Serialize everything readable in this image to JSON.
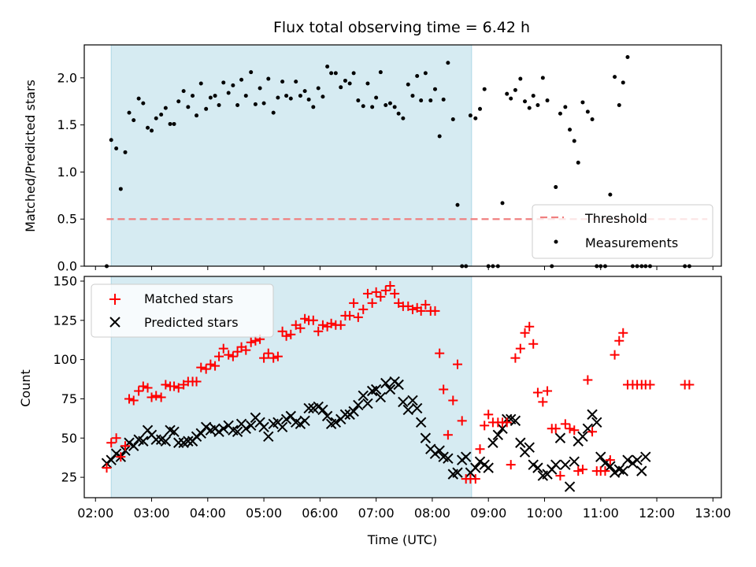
{
  "chart_data": [
    {
      "type": "scatter",
      "panel": "top",
      "title": "Flux total observing time = 6.42 h",
      "xlabel": "",
      "ylabel": "Matched/Predicted stars",
      "xlim_hours": [
        1.8,
        13.15
      ],
      "ylim": [
        0,
        2.35
      ],
      "yticks": [
        0.0,
        0.5,
        1.0,
        1.5,
        2.0
      ],
      "ytick_labels": [
        "0.0",
        "0.5",
        "1.0",
        "1.5",
        "2.0"
      ],
      "shaded_interval_hours": [
        2.28,
        8.7
      ],
      "shade_color": "#add8e6",
      "threshold": {
        "name": "Threshold",
        "value": 0.5,
        "x_range_hours": [
          2.2,
          12.9
        ],
        "color": "#f08080"
      },
      "legend": [
        "Threshold",
        "Measurements"
      ],
      "legend_position": "lower-right",
      "series": [
        {
          "name": "Measurements",
          "color": "#000000",
          "x_hours": [
            2.2,
            2.28,
            2.37,
            2.45,
            2.53,
            2.6,
            2.68,
            2.77,
            2.85,
            2.93,
            3.0,
            3.08,
            3.17,
            3.25,
            3.33,
            3.4,
            3.48,
            3.57,
            3.65,
            3.73,
            3.8,
            3.88,
            3.97,
            4.05,
            4.13,
            4.2,
            4.28,
            4.37,
            4.45,
            4.53,
            4.6,
            4.68,
            4.77,
            4.85,
            4.93,
            5.0,
            5.08,
            5.17,
            5.25,
            5.33,
            5.4,
            5.48,
            5.57,
            5.65,
            5.73,
            5.8,
            5.88,
            5.97,
            6.05,
            6.13,
            6.2,
            6.28,
            6.37,
            6.45,
            6.53,
            6.6,
            6.68,
            6.77,
            6.85,
            6.93,
            7.0,
            7.08,
            7.17,
            7.25,
            7.33,
            7.4,
            7.48,
            7.57,
            7.65,
            7.73,
            7.8,
            7.88,
            7.97,
            8.05,
            8.13,
            8.2,
            8.28,
            8.37,
            8.45,
            8.53,
            8.6,
            8.68,
            8.77,
            8.85,
            8.93,
            9.0,
            9.08,
            9.17,
            9.25,
            9.33,
            9.4,
            9.48,
            9.57,
            9.65,
            9.73,
            9.8,
            9.88,
            9.97,
            10.05,
            10.13,
            10.2,
            10.28,
            10.37,
            10.45,
            10.53,
            10.6,
            10.68,
            10.77,
            10.85,
            10.93,
            11.0,
            11.08,
            11.17,
            11.25,
            11.33,
            11.4,
            11.48,
            11.57,
            11.65,
            11.73,
            11.8,
            11.88,
            12.5,
            12.58
          ],
          "y": [
            0.0,
            1.34,
            1.25,
            0.82,
            1.21,
            1.63,
            1.55,
            1.78,
            1.73,
            1.47,
            1.44,
            1.57,
            1.61,
            1.68,
            1.51,
            1.51,
            1.75,
            1.86,
            1.69,
            1.81,
            1.6,
            1.94,
            1.67,
            1.79,
            1.81,
            1.71,
            1.95,
            1.84,
            1.92,
            1.71,
            1.98,
            1.81,
            2.06,
            1.72,
            1.89,
            1.73,
            1.99,
            1.63,
            1.79,
            1.96,
            1.81,
            1.78,
            1.96,
            1.81,
            1.86,
            1.77,
            1.69,
            1.89,
            1.8,
            2.12,
            2.05,
            2.05,
            1.9,
            1.97,
            1.94,
            2.05,
            1.76,
            1.7,
            1.94,
            1.69,
            1.79,
            2.06,
            1.71,
            1.73,
            1.69,
            1.62,
            1.57,
            1.93,
            1.81,
            2.02,
            1.76,
            2.05,
            1.76,
            1.88,
            1.38,
            1.77,
            2.16,
            1.56,
            0.65,
            0.0,
            0.0,
            1.6,
            1.57,
            1.67,
            1.88,
            0.0,
            0.0,
            0.0,
            0.67,
            1.83,
            1.78,
            1.87,
            1.99,
            1.75,
            1.68,
            1.81,
            1.71,
            2.0,
            1.76,
            0.0,
            0.84,
            1.62,
            1.69,
            1.45,
            1.33,
            1.1,
            1.74,
            1.64,
            1.56,
            0.0,
            0.0,
            0.0,
            0.76,
            2.01,
            1.71,
            1.95,
            2.22,
            0.0,
            0.0,
            0.0,
            0.0,
            0.0,
            0.0,
            0.0
          ]
        }
      ]
    },
    {
      "type": "scatter",
      "panel": "bottom",
      "title": "",
      "xlabel": "Time (UTC)",
      "ylabel": "Count",
      "xlim_hours": [
        1.8,
        13.15
      ],
      "ylim": [
        12,
        153
      ],
      "yticks": [
        25,
        50,
        75,
        100,
        125,
        150
      ],
      "ytick_labels": [
        "25",
        "50",
        "75",
        "100",
        "125",
        "150"
      ],
      "xticks_hours": [
        2,
        3,
        4,
        5,
        6,
        7,
        8,
        9,
        10,
        11,
        12,
        13
      ],
      "xtick_labels": [
        "02:00",
        "03:00",
        "04:00",
        "05:00",
        "06:00",
        "07:00",
        "08:00",
        "09:00",
        "10:00",
        "11:00",
        "12:00",
        "13:00"
      ],
      "shaded_interval_hours": [
        2.28,
        8.7
      ],
      "legend": [
        "Matched stars",
        "Predicted stars"
      ],
      "legend_position": "upper-left",
      "series": [
        {
          "name": "Matched stars",
          "marker": "+",
          "color": "#ff0000",
          "x_hours": [
            2.2,
            2.28,
            2.37,
            2.45,
            2.53,
            2.6,
            2.68,
            2.77,
            2.85,
            2.93,
            3.0,
            3.08,
            3.17,
            3.25,
            3.33,
            3.4,
            3.48,
            3.57,
            3.65,
            3.73,
            3.8,
            3.88,
            3.97,
            4.05,
            4.13,
            4.2,
            4.28,
            4.37,
            4.45,
            4.53,
            4.6,
            4.68,
            4.77,
            4.85,
            4.93,
            5.0,
            5.08,
            5.17,
            5.25,
            5.33,
            5.4,
            5.48,
            5.57,
            5.65,
            5.73,
            5.8,
            5.88,
            5.97,
            6.05,
            6.13,
            6.2,
            6.28,
            6.37,
            6.45,
            6.53,
            6.6,
            6.68,
            6.77,
            6.85,
            6.93,
            7.0,
            7.08,
            7.17,
            7.25,
            7.33,
            7.4,
            7.48,
            7.57,
            7.65,
            7.73,
            7.8,
            7.88,
            7.97,
            8.05,
            8.13,
            8.2,
            8.28,
            8.37,
            8.45,
            8.53,
            8.6,
            8.68,
            8.77,
            8.85,
            8.93,
            9.0,
            9.08,
            9.17,
            9.25,
            9.33,
            9.4,
            9.48,
            9.57,
            9.65,
            9.73,
            9.8,
            9.88,
            9.97,
            10.05,
            10.13,
            10.2,
            10.28,
            10.37,
            10.45,
            10.53,
            10.6,
            10.68,
            10.77,
            10.85,
            10.93,
            11.0,
            11.08,
            11.17,
            11.25,
            11.33,
            11.4,
            11.48,
            11.57,
            11.65,
            11.73,
            11.8,
            11.88,
            12.5,
            12.58
          ],
          "y": [
            31,
            47,
            50,
            38,
            45,
            75,
            74,
            80,
            83,
            82,
            76,
            77,
            76,
            84,
            83,
            83,
            82,
            84,
            86,
            86,
            86,
            95,
            94,
            97,
            96,
            102,
            107,
            103,
            102,
            105,
            108,
            106,
            111,
            112,
            113,
            101,
            104,
            101,
            102,
            118,
            115,
            116,
            122,
            120,
            126,
            125,
            125,
            118,
            122,
            121,
            123,
            122,
            122,
            128,
            128,
            136,
            127,
            132,
            142,
            136,
            143,
            140,
            144,
            147,
            142,
            136,
            134,
            134,
            132,
            133,
            131,
            135,
            131,
            131,
            104,
            81,
            52,
            74,
            97,
            61,
            24,
            24,
            24,
            43,
            58,
            65,
            60,
            60,
            60,
            60,
            33,
            101,
            107,
            117,
            121,
            110,
            79,
            73,
            80,
            56,
            56,
            26,
            59,
            56,
            55,
            29,
            30,
            87,
            54,
            29,
            29,
            29,
            36,
            103,
            112,
            117,
            84,
            84,
            84,
            84,
            84,
            84,
            84,
            84
          ]
        },
        {
          "name": "Predicted stars",
          "marker": "x",
          "color": "#000000",
          "x_hours": [
            2.2,
            2.28,
            2.37,
            2.45,
            2.53,
            2.6,
            2.68,
            2.77,
            2.85,
            2.93,
            3.0,
            3.08,
            3.17,
            3.25,
            3.33,
            3.4,
            3.48,
            3.57,
            3.65,
            3.73,
            3.8,
            3.88,
            3.97,
            4.05,
            4.13,
            4.2,
            4.28,
            4.37,
            4.45,
            4.53,
            4.6,
            4.68,
            4.77,
            4.85,
            4.93,
            5.0,
            5.08,
            5.17,
            5.25,
            5.33,
            5.4,
            5.48,
            5.57,
            5.65,
            5.73,
            5.8,
            5.88,
            5.97,
            6.05,
            6.13,
            6.2,
            6.28,
            6.37,
            6.45,
            6.53,
            6.6,
            6.68,
            6.77,
            6.85,
            6.93,
            7.0,
            7.08,
            7.17,
            7.25,
            7.33,
            7.4,
            7.48,
            7.57,
            7.65,
            7.73,
            7.8,
            7.88,
            7.97,
            8.05,
            8.13,
            8.2,
            8.28,
            8.37,
            8.45,
            8.53,
            8.6,
            8.68,
            8.77,
            8.85,
            8.93,
            9.0,
            9.08,
            9.17,
            9.25,
            9.33,
            9.4,
            9.48,
            9.57,
            9.65,
            9.73,
            9.8,
            9.88,
            9.97,
            10.05,
            10.13,
            10.2,
            10.28,
            10.37,
            10.45,
            10.53,
            10.6,
            10.68,
            10.77,
            10.85,
            10.93,
            11.0,
            11.08,
            11.17,
            11.25,
            11.33,
            11.4,
            11.48,
            11.57,
            11.65,
            11.73,
            11.8
          ],
          "y": [
            34,
            36,
            40,
            38,
            42,
            47,
            45,
            49,
            48,
            55,
            52,
            49,
            49,
            48,
            55,
            54,
            47,
            47,
            48,
            48,
            51,
            53,
            57,
            55,
            56,
            54,
            56,
            58,
            55,
            54,
            59,
            56,
            58,
            63,
            60,
            57,
            51,
            59,
            60,
            57,
            62,
            64,
            60,
            59,
            61,
            69,
            69,
            70,
            68,
            64,
            59,
            60,
            62,
            65,
            65,
            67,
            71,
            77,
            72,
            80,
            81,
            76,
            85,
            81,
            86,
            84,
            73,
            68,
            74,
            69,
            60,
            50,
            43,
            40,
            42,
            38,
            37,
            27,
            28,
            36,
            38,
            28,
            31,
            35,
            33,
            31,
            47,
            52,
            56,
            62,
            62,
            61,
            47,
            41,
            44,
            33,
            31,
            26,
            27,
            30,
            33,
            50,
            33,
            19,
            35,
            48,
            51,
            56,
            65,
            60,
            38,
            34,
            32,
            28,
            30,
            29,
            36,
            34,
            36,
            29,
            38
          ]
        }
      ]
    }
  ]
}
